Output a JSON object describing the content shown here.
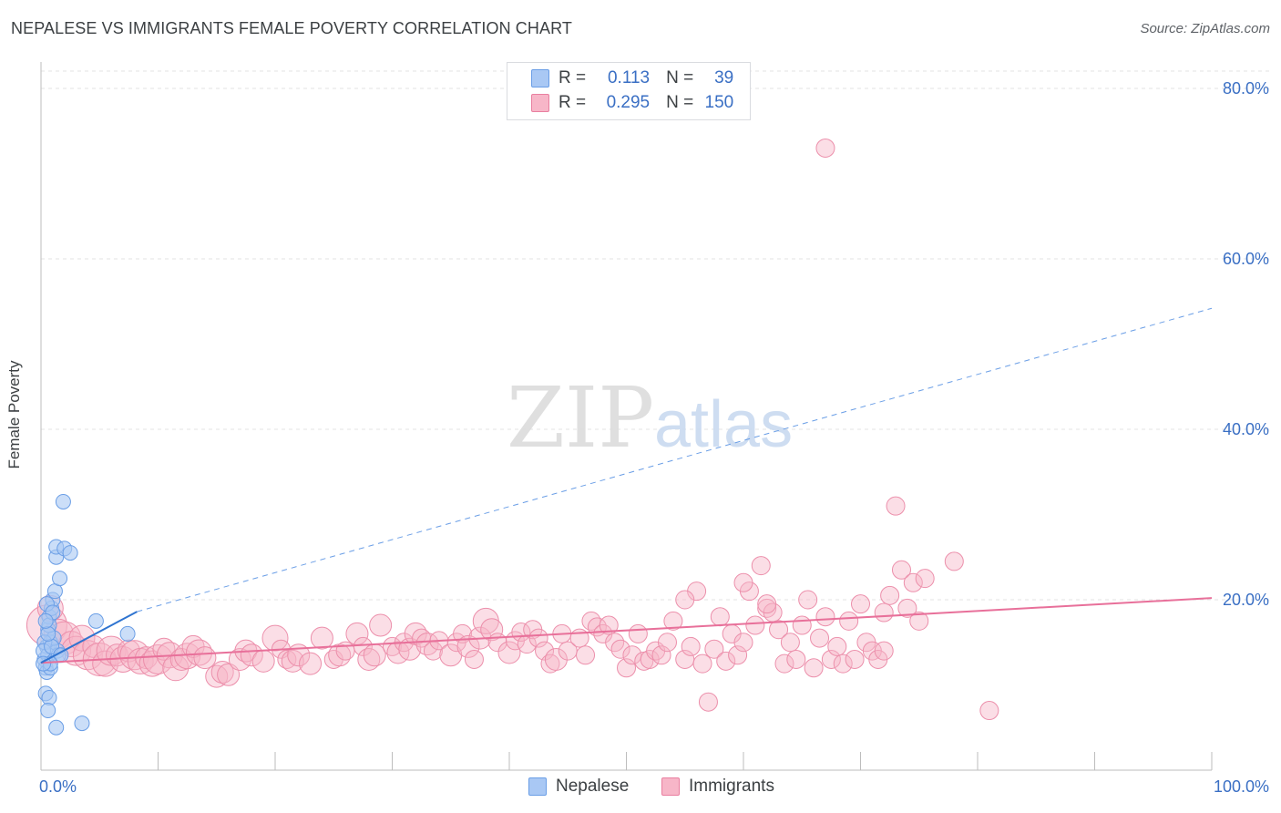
{
  "header": {
    "title": "NEPALESE VS IMMIGRANTS FEMALE POVERTY CORRELATION CHART",
    "source": "Source: ZipAtlas.com"
  },
  "watermark": {
    "zip": "ZIP",
    "atlas": "atlas"
  },
  "legend": {
    "rows": [
      {
        "r_label": "R =",
        "r_value": "0.113",
        "n_label": "N =",
        "n_value": "39",
        "color": "#a9c8f4",
        "border": "#6a9ee6"
      },
      {
        "r_label": "R =",
        "r_value": "0.295",
        "n_label": "N =",
        "n_value": "150",
        "color": "#f7b6c8",
        "border": "#e97fa0"
      }
    ]
  },
  "bottom_legend": [
    {
      "label": "Nepalese",
      "color": "#a9c8f4",
      "border": "#6a9ee6"
    },
    {
      "label": "Immigrants",
      "color": "#f7b6c8",
      "border": "#e97fa0"
    }
  ],
  "chart_data": {
    "type": "scatter",
    "title": "NEPALESE VS IMMIGRANTS FEMALE POVERTY CORRELATION CHART",
    "xlabel": "",
    "ylabel": "Female Poverty",
    "xlim": [
      0,
      100
    ],
    "ylim": [
      0,
      80
    ],
    "x_tick_labels": [
      "0.0%",
      "100.0%"
    ],
    "y_ticks": [
      20,
      40,
      60,
      80
    ],
    "y_tick_labels": [
      "20.0%",
      "40.0%",
      "60.0%",
      "80.0%"
    ],
    "grid": true,
    "colors": {
      "nepalese_fill": "#a9c8f4",
      "nepalese_stroke": "#6a9ee6",
      "nepalese_line": "#2f74d0",
      "immigrants_fill": "#f7b6c8",
      "immigrants_stroke": "#ec8fab",
      "immigrants_line": "#e8709a",
      "axis_label": "#3a6fc4"
    },
    "series": [
      {
        "name": "Nepalese",
        "trend": {
          "x0": 0,
          "y0": 12.6,
          "x1": 8.2,
          "y1": 18.6,
          "dashed_to_x": 100,
          "dashed_to_y": 54.2
        },
        "points": [
          [
            0.3,
            13.0
          ],
          [
            0.5,
            14.5
          ],
          [
            0.6,
            16.5
          ],
          [
            0.8,
            15.0
          ],
          [
            0.4,
            12.0
          ],
          [
            0.7,
            18.0
          ],
          [
            0.9,
            19.0
          ],
          [
            1.0,
            20.0
          ],
          [
            1.2,
            21.0
          ],
          [
            1.4,
            14.0
          ],
          [
            0.6,
            13.5
          ],
          [
            0.5,
            11.5
          ],
          [
            0.8,
            12.0
          ],
          [
            1.1,
            15.5
          ],
          [
            0.3,
            15.0
          ],
          [
            0.7,
            17.0
          ],
          [
            1.5,
            13.5
          ],
          [
            1.6,
            22.5
          ],
          [
            1.3,
            25.0
          ],
          [
            1.3,
            26.2
          ],
          [
            2.0,
            26.0
          ],
          [
            2.5,
            25.5
          ],
          [
            1.9,
            31.5
          ],
          [
            0.4,
            9.0
          ],
          [
            0.7,
            8.5
          ],
          [
            0.6,
            7.0
          ],
          [
            1.3,
            5.0
          ],
          [
            3.5,
            5.5
          ],
          [
            4.7,
            17.5
          ],
          [
            7.4,
            16.0
          ],
          [
            0.2,
            14.0
          ],
          [
            0.9,
            14.5
          ],
          [
            1.7,
            13.5
          ],
          [
            0.5,
            19.5
          ],
          [
            0.6,
            16.0
          ],
          [
            0.8,
            12.5
          ],
          [
            1.0,
            18.5
          ],
          [
            0.4,
            17.5
          ],
          [
            0.2,
            12.5
          ]
        ]
      },
      {
        "name": "Immigrants",
        "trend": {
          "x0": 0,
          "y0": 12.6,
          "x1": 100,
          "y1": 20.2
        },
        "points": [
          [
            0.5,
            17.0,
            22
          ],
          [
            0.8,
            19.0,
            14
          ],
          [
            1.5,
            16.0,
            16
          ],
          [
            2.0,
            15.5,
            18
          ],
          [
            2.6,
            14.8,
            14
          ],
          [
            3.0,
            14.0,
            16
          ],
          [
            3.5,
            15.5,
            14
          ],
          [
            4.0,
            13.5,
            16
          ],
          [
            4.5,
            14.5,
            12
          ],
          [
            5.0,
            13.0,
            18
          ],
          [
            5.5,
            12.5,
            14
          ],
          [
            6.0,
            14.0,
            16
          ],
          [
            6.5,
            13.5,
            12
          ],
          [
            7.0,
            13.0,
            14
          ],
          [
            7.5,
            14.0,
            12
          ],
          [
            8.0,
            13.5,
            16
          ],
          [
            8.5,
            12.8,
            14
          ],
          [
            9.0,
            13.2,
            12
          ],
          [
            9.5,
            12.5,
            14
          ],
          [
            10.0,
            13.0,
            16
          ],
          [
            10.5,
            14.2,
            12
          ],
          [
            11.0,
            13.5,
            14
          ],
          [
            11.5,
            12.0,
            14
          ],
          [
            12.0,
            13.0,
            12
          ],
          [
            12.5,
            13.4,
            14
          ],
          [
            13.0,
            14.5,
            12
          ],
          [
            13.5,
            13.8,
            14
          ],
          [
            14.0,
            13.2,
            12
          ],
          [
            15.0,
            11.0,
            12
          ],
          [
            15.5,
            11.5,
            12
          ],
          [
            16.0,
            11.2,
            12
          ],
          [
            17.0,
            13.0,
            12
          ],
          [
            17.5,
            14.0,
            12
          ],
          [
            18.0,
            13.5,
            12
          ],
          [
            19.0,
            12.8,
            12
          ],
          [
            20.0,
            15.5,
            14
          ],
          [
            20.5,
            14.2,
            10
          ],
          [
            21.0,
            13.0,
            10
          ],
          [
            21.5,
            12.8,
            12
          ],
          [
            22.0,
            13.5,
            12
          ],
          [
            23.0,
            12.5,
            12
          ],
          [
            24.0,
            15.5,
            12
          ],
          [
            25.0,
            13.0,
            10
          ],
          [
            25.5,
            13.5,
            12
          ],
          [
            26.0,
            14.0,
            10
          ],
          [
            27.0,
            16.0,
            12
          ],
          [
            27.5,
            14.5,
            10
          ],
          [
            28.0,
            13.0,
            12
          ],
          [
            28.5,
            13.5,
            12
          ],
          [
            29.0,
            17.0,
            12
          ],
          [
            30.0,
            14.5,
            10
          ],
          [
            30.5,
            13.8,
            12
          ],
          [
            31.0,
            15.0,
            10
          ],
          [
            31.5,
            14.2,
            12
          ],
          [
            32.0,
            16.0,
            12
          ],
          [
            32.5,
            15.5,
            10
          ],
          [
            33.0,
            14.8,
            12
          ],
          [
            33.5,
            14.0,
            10
          ],
          [
            34.0,
            15.2,
            10
          ],
          [
            35.0,
            13.5,
            12
          ],
          [
            35.5,
            15.0,
            10
          ],
          [
            36.0,
            16.0,
            10
          ],
          [
            36.5,
            14.5,
            12
          ],
          [
            37.0,
            13.0,
            10
          ],
          [
            37.5,
            15.5,
            12
          ],
          [
            38.0,
            17.5,
            14
          ],
          [
            38.5,
            16.5,
            12
          ],
          [
            39.0,
            15.0,
            10
          ],
          [
            40.0,
            13.8,
            12
          ],
          [
            40.5,
            15.2,
            10
          ],
          [
            41.0,
            16.2,
            10
          ],
          [
            41.5,
            14.8,
            10
          ],
          [
            42.0,
            16.5,
            10
          ],
          [
            42.5,
            15.5,
            10
          ],
          [
            43.0,
            14.0,
            10
          ],
          [
            43.5,
            12.5,
            10
          ],
          [
            44.0,
            13.0,
            12
          ],
          [
            44.5,
            16.0,
            10
          ],
          [
            45.0,
            14.0,
            10
          ],
          [
            46.0,
            15.5,
            10
          ],
          [
            46.5,
            13.5,
            10
          ],
          [
            47.0,
            17.5,
            10
          ],
          [
            47.5,
            16.8,
            10
          ],
          [
            48.0,
            16.0,
            10
          ],
          [
            48.5,
            17.0,
            10
          ],
          [
            49.0,
            15.0,
            10
          ],
          [
            49.5,
            14.2,
            10
          ],
          [
            50.0,
            12.0,
            10
          ],
          [
            50.5,
            13.5,
            10
          ],
          [
            51.0,
            16.0,
            10
          ],
          [
            51.5,
            12.8,
            10
          ],
          [
            52.0,
            13.0,
            10
          ],
          [
            52.5,
            14.0,
            10
          ],
          [
            53.0,
            13.5,
            10
          ],
          [
            53.5,
            15.0,
            10
          ],
          [
            54.0,
            17.5,
            10
          ],
          [
            55.0,
            13.0,
            10
          ],
          [
            55.5,
            14.5,
            10
          ],
          [
            56.0,
            21.0,
            10
          ],
          [
            56.5,
            12.5,
            10
          ],
          [
            57.0,
            8.0,
            10
          ],
          [
            57.5,
            14.2,
            10
          ],
          [
            58.0,
            18.0,
            10
          ],
          [
            58.5,
            12.8,
            10
          ],
          [
            59.0,
            16.0,
            10
          ],
          [
            59.5,
            13.5,
            10
          ],
          [
            60.0,
            15.0,
            10
          ],
          [
            60.5,
            21.0,
            10
          ],
          [
            61.0,
            17.0,
            10
          ],
          [
            61.5,
            24.0,
            10
          ],
          [
            62.0,
            19.0,
            10
          ],
          [
            62.5,
            18.5,
            10
          ],
          [
            63.0,
            16.5,
            10
          ],
          [
            63.5,
            12.5,
            10
          ],
          [
            64.0,
            15.0,
            10
          ],
          [
            64.5,
            13.0,
            10
          ],
          [
            65.0,
            17.0,
            10
          ],
          [
            65.5,
            20.0,
            10
          ],
          [
            66.0,
            12.0,
            10
          ],
          [
            66.5,
            15.5,
            10
          ],
          [
            67.0,
            18.0,
            10
          ],
          [
            67.5,
            13.0,
            10
          ],
          [
            68.0,
            14.5,
            10
          ],
          [
            68.5,
            12.5,
            10
          ],
          [
            69.0,
            17.5,
            10
          ],
          [
            69.5,
            13.0,
            10
          ],
          [
            70.0,
            19.5,
            10
          ],
          [
            70.5,
            15.0,
            10
          ],
          [
            71.0,
            14.0,
            10
          ],
          [
            71.5,
            13.0,
            10
          ],
          [
            72.0,
            18.5,
            10
          ],
          [
            72.5,
            20.5,
            10
          ],
          [
            73.0,
            31.0,
            10
          ],
          [
            73.5,
            23.5,
            10
          ],
          [
            74.0,
            19.0,
            10
          ],
          [
            74.5,
            22.0,
            10
          ],
          [
            75.0,
            17.5,
            10
          ],
          [
            75.5,
            22.5,
            10
          ],
          [
            78.0,
            24.5,
            10
          ],
          [
            81.0,
            7.0,
            10
          ],
          [
            67.0,
            73.0,
            10
          ],
          [
            60.0,
            22.0,
            10
          ],
          [
            62.0,
            19.5,
            10
          ],
          [
            72.0,
            14.0,
            10
          ],
          [
            55.0,
            20.0,
            10
          ]
        ]
      }
    ]
  }
}
